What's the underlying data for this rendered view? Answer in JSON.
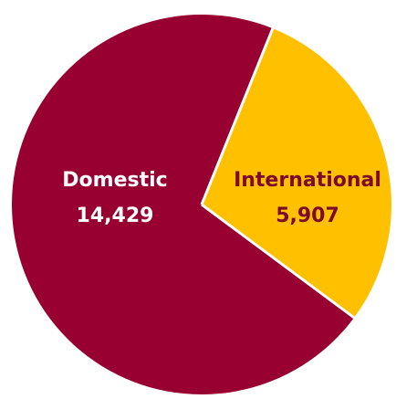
{
  "chart_data": {
    "type": "pie",
    "title": "",
    "start_angle_deg": 22,
    "direction": "clockwise",
    "slices": [
      {
        "label": "International",
        "value": 5907,
        "value_label": "5,907",
        "color": "#FFC000",
        "label_color": "#7B0A2B"
      },
      {
        "label": "Domestic",
        "value": 14429,
        "value_label": "14,429",
        "color": "#970030",
        "label_color": "#FFFFFF"
      }
    ],
    "separator_color": "#FFFFFF",
    "legend": "none"
  }
}
